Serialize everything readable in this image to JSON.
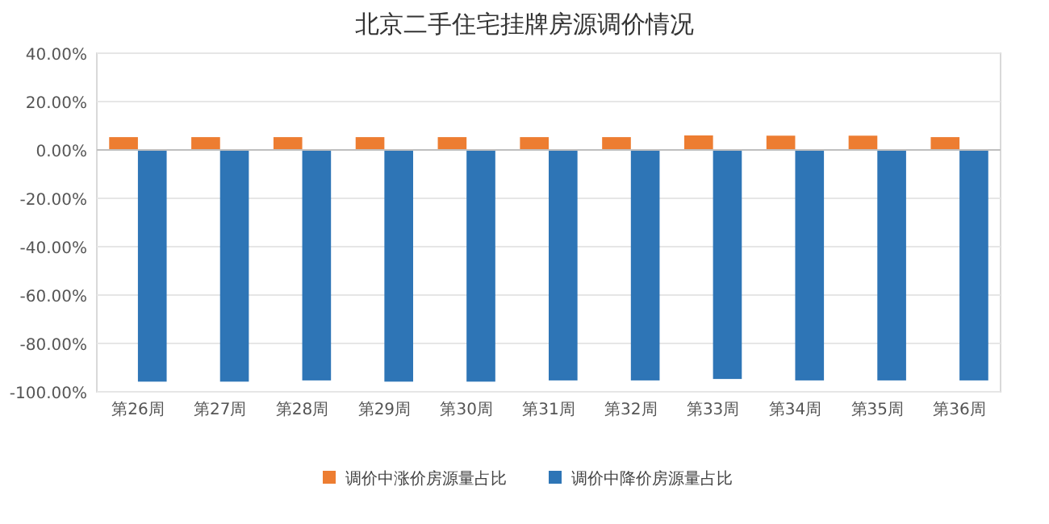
{
  "chart_data": {
    "type": "bar",
    "title": "北京二手住宅挂牌房源调价情况",
    "categories": [
      "第26周",
      "第27周",
      "第28周",
      "第29周",
      "第30周",
      "第31周",
      "第32周",
      "第33周",
      "第34周",
      "第35周",
      "第36周"
    ],
    "series": [
      {
        "name": "调价中涨价房源量占比",
        "color": "#ed7d31",
        "values": [
          5.3,
          5.3,
          5.3,
          5.3,
          5.3,
          5.3,
          5.3,
          6.0,
          5.9,
          5.9,
          5.3
        ]
      },
      {
        "name": "调价中降价房源量占比",
        "color": "#2e75b6",
        "values": [
          -95.8,
          -95.8,
          -95.3,
          -95.8,
          -95.8,
          -95.3,
          -95.3,
          -94.7,
          -95.3,
          -95.3,
          -95.3
        ]
      }
    ],
    "ylim": [
      -100,
      40
    ],
    "yticks": [
      {
        "value": 40,
        "label": "40.00%"
      },
      {
        "value": 20,
        "label": "20.00%"
      },
      {
        "value": 0,
        "label": "0.00%"
      },
      {
        "value": -20,
        "label": "-20.00%"
      },
      {
        "value": -40,
        "label": "-40.00%"
      },
      {
        "value": -60,
        "label": "-60.00%"
      },
      {
        "value": -80,
        "label": "-80.00%"
      },
      {
        "value": -100,
        "label": "-100.00%"
      }
    ],
    "grid": "y",
    "legend": "bottom"
  }
}
